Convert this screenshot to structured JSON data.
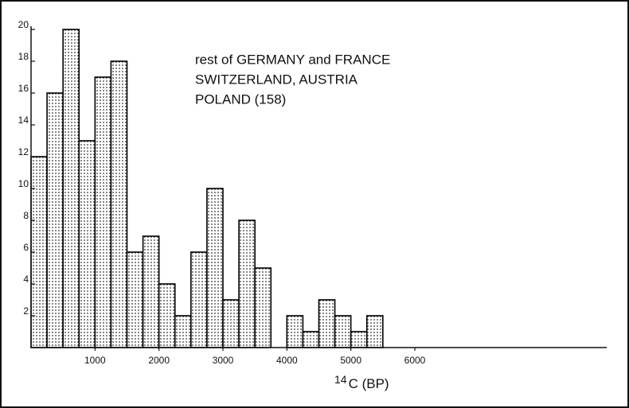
{
  "chart_data": {
    "type": "histogram",
    "annotation": [
      "rest of GERMANY and FRANCE",
      "SWITZERLAND, AUSTRIA",
      "POLAND  (158)"
    ],
    "xlabel": {
      "sup": "14",
      "text": "C (BP)"
    },
    "bins": [
      0,
      250,
      500,
      750,
      1000,
      1250,
      1500,
      1750,
      2000,
      2250,
      2500,
      2750,
      3000,
      3250,
      3500,
      3750,
      4000,
      4250,
      4500,
      4750,
      5000,
      5250,
      5500
    ],
    "values": [
      12,
      16,
      20,
      13,
      17,
      18,
      6,
      7,
      4,
      2,
      6,
      10,
      3,
      8,
      5,
      0,
      2,
      1,
      3,
      2,
      1,
      2
    ],
    "color": "#000000",
    "xlim": [
      0,
      9000
    ],
    "xticks": [
      1000,
      2000,
      3000,
      4000,
      5000,
      6000
    ],
    "ylim": [
      0,
      20
    ],
    "yticks": [
      2,
      4,
      6,
      8,
      10,
      12,
      14,
      16,
      18,
      20
    ]
  }
}
